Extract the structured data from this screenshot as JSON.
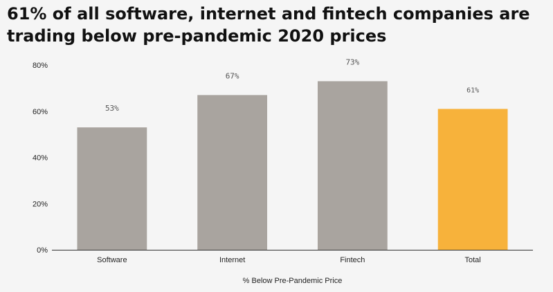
{
  "chart_data": {
    "type": "bar",
    "title": "61% of all software, internet and fintech companies are trading below pre-pandemic 2020 prices",
    "categories": [
      "Software",
      "Internet",
      "Fintech",
      "Total"
    ],
    "values": [
      53,
      67,
      73,
      61
    ],
    "value_labels": [
      "53%",
      "67%",
      "73%",
      "61%"
    ],
    "xlabel": "% Below Pre-Pandemic Price",
    "ylabel": "",
    "ylim": [
      0,
      80
    ],
    "yticks": [
      0,
      20,
      40,
      60,
      80
    ],
    "ytick_labels": [
      "0%",
      "20%",
      "40%",
      "60%",
      "80%"
    ],
    "grid": false,
    "legend": "none",
    "colors": {
      "default": "#a9a49f",
      "highlight": "#f7b23b",
      "axis": "#333333"
    },
    "highlight_category": "Total"
  }
}
